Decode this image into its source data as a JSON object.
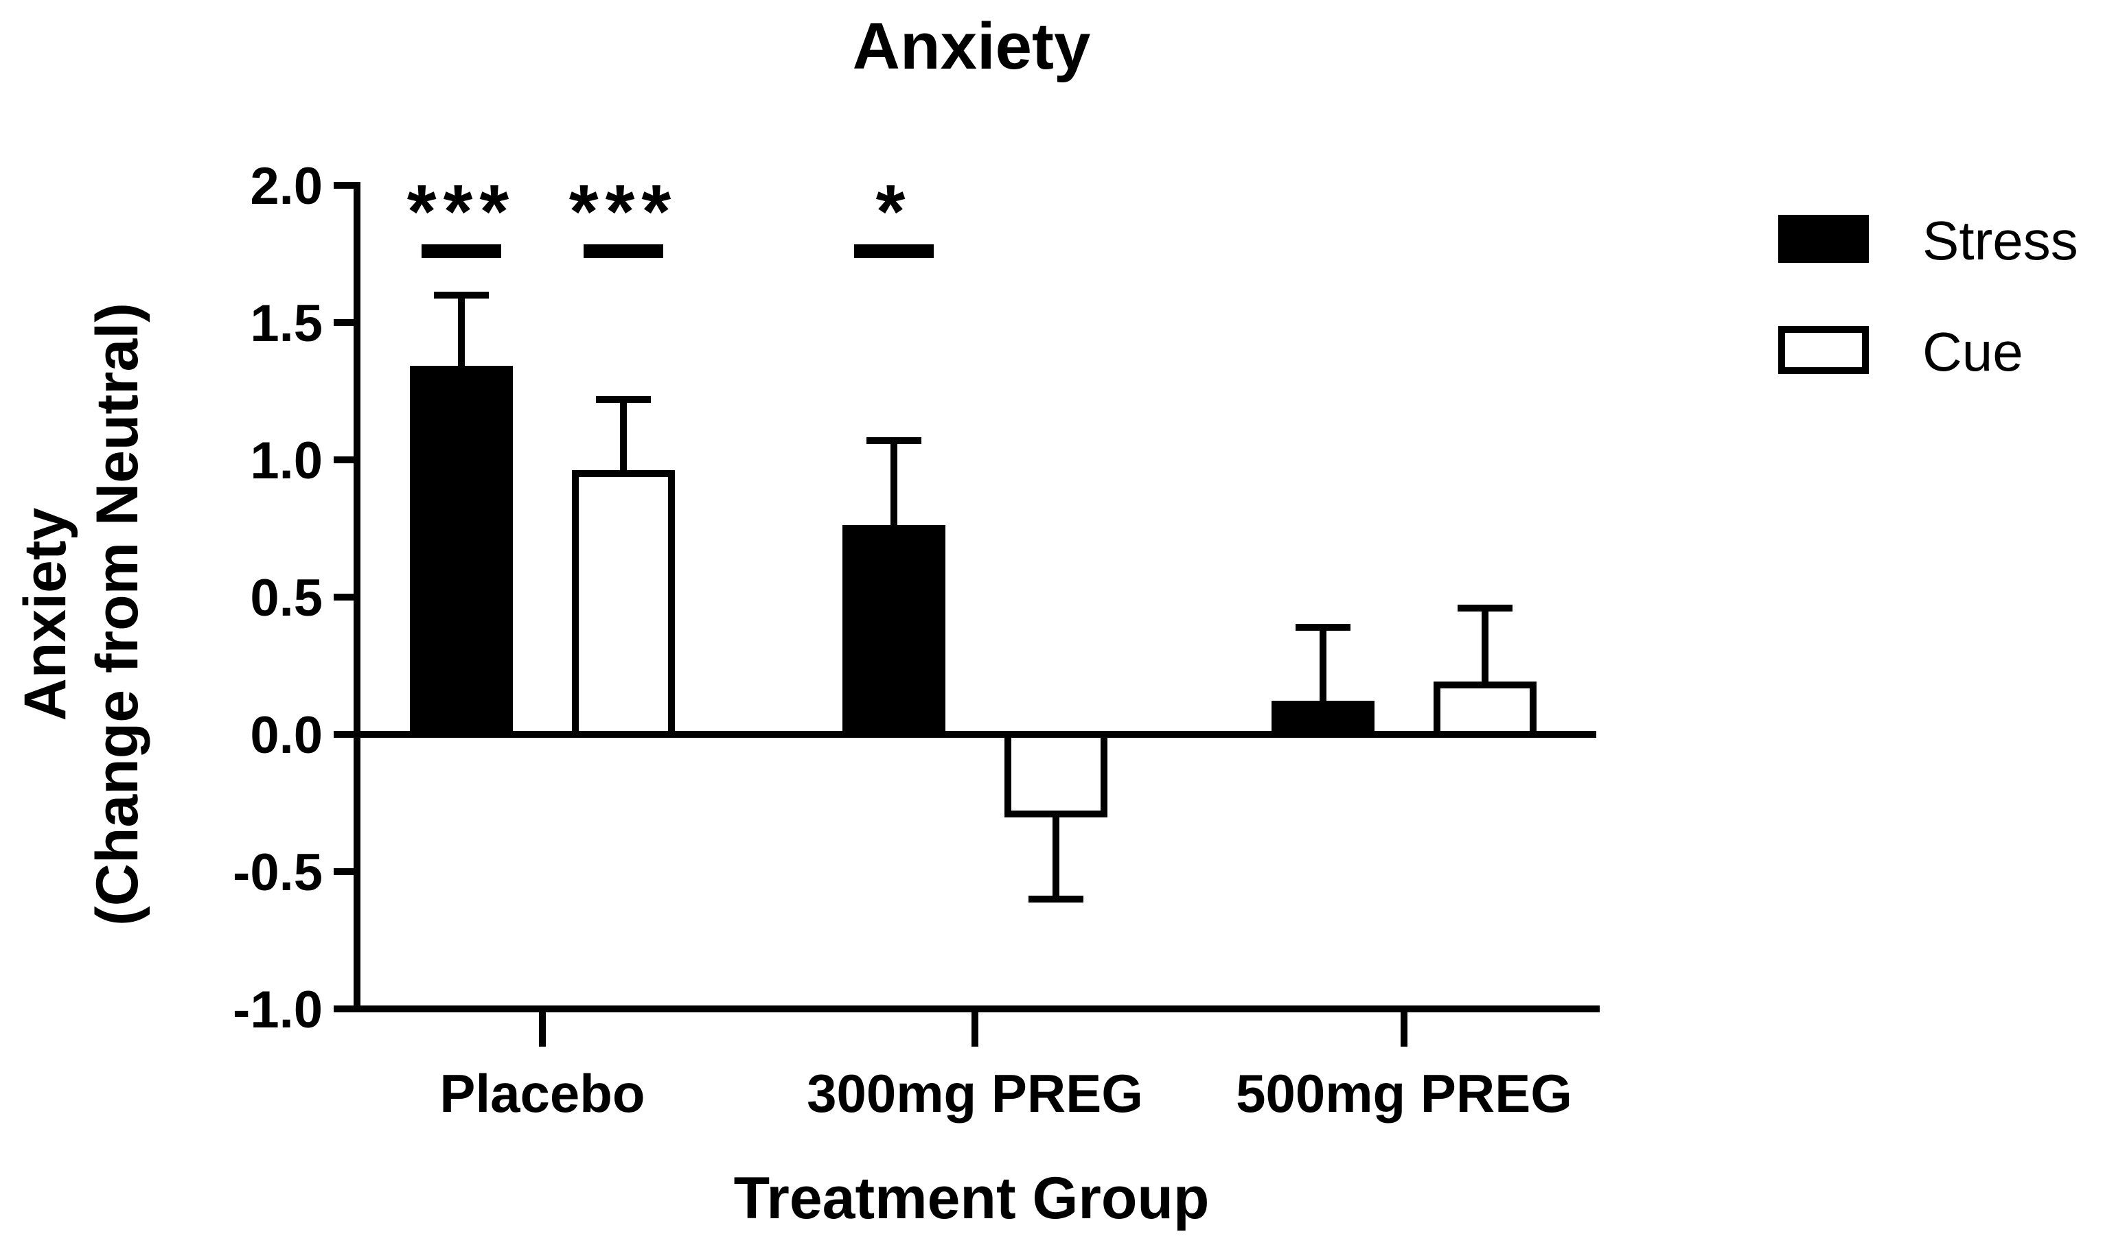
{
  "chart_data": {
    "type": "bar",
    "title": "Anxiety",
    "xlabel": "Treatment Group",
    "ylabel_line1": "Anxiety",
    "ylabel_line2": "(Change from Neutral)",
    "categories": [
      "Placebo",
      "300mg PREG",
      "500mg PREG"
    ],
    "ylim": [
      -1.0,
      2.0
    ],
    "yticks": [
      2.0,
      1.5,
      1.0,
      0.5,
      0.0,
      -0.5,
      -1.0
    ],
    "ytick_labels": [
      "2.0",
      "1.5",
      "1.0",
      "0.5",
      "0.0",
      "-0.5",
      "-1.0"
    ],
    "series": [
      {
        "name": "Stress",
        "fill": "#000000",
        "values": [
          1.33,
          0.75,
          0.11
        ],
        "errors": [
          0.27,
          0.32,
          0.28
        ]
      },
      {
        "name": "Cue",
        "fill": "#ffffff",
        "values": [
          0.95,
          -0.29,
          0.18
        ],
        "errors": [
          0.27,
          0.31,
          0.28
        ]
      }
    ],
    "significance": [
      {
        "category": 0,
        "series": 0,
        "label": "***"
      },
      {
        "category": 0,
        "series": 1,
        "label": "***"
      },
      {
        "category": 1,
        "series": 0,
        "label": "*"
      }
    ],
    "legend_position": "top-right"
  }
}
